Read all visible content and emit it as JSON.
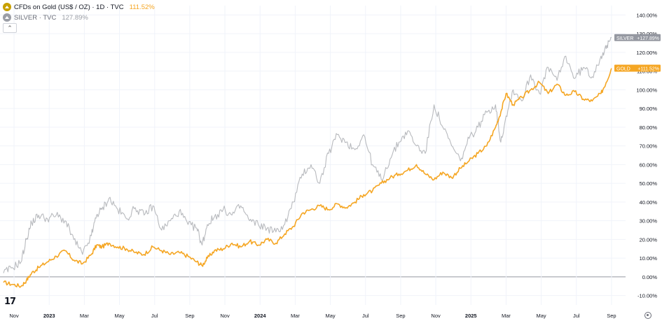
{
  "legend": {
    "gold": {
      "label": "CFDs on Gold (US$ / OZ) · 1D · TVC",
      "value": "111.52%"
    },
    "silver": {
      "label": "SILVER · TVC",
      "value": "127.89%"
    }
  },
  "collapse_icon": "chevron-up-icon",
  "logo_text": "17",
  "colors": {
    "gold": "#f5a623",
    "silver": "#b8babe",
    "silver_tag": "#9598a1",
    "grid": "#f0f3fa",
    "zero": "#9598a1",
    "text": "#131722"
  },
  "chart_data": {
    "type": "line",
    "y_unit": "%",
    "ylim": [
      -15,
      145
    ],
    "y_ticks": [
      "140.00%",
      "130.00%",
      "120.00%",
      "110.00%",
      "100.00%",
      "90.00%",
      "80.00%",
      "70.00%",
      "60.00%",
      "50.00%",
      "40.00%",
      "30.00%",
      "20.00%",
      "10.00%",
      "0.00%",
      "-10.00%"
    ],
    "x_ticks": [
      {
        "label": "Nov",
        "t": 0.6
      },
      {
        "label": "2023",
        "t": 2.6
      },
      {
        "label": "Mar",
        "t": 4.6
      },
      {
        "label": "May",
        "t": 6.6
      },
      {
        "label": "Jul",
        "t": 8.6
      },
      {
        "label": "Sep",
        "t": 10.6
      },
      {
        "label": "Nov",
        "t": 12.6
      },
      {
        "label": "2024",
        "t": 14.6
      },
      {
        "label": "Mar",
        "t": 16.6
      },
      {
        "label": "May",
        "t": 18.6
      },
      {
        "label": "Jul",
        "t": 20.6
      },
      {
        "label": "Sep",
        "t": 22.6
      },
      {
        "label": "Nov",
        "t": 24.6
      },
      {
        "label": "2025",
        "t": 26.6
      },
      {
        "label": "Mar",
        "t": 28.6
      },
      {
        "label": "May",
        "t": 30.6
      },
      {
        "label": "Jul",
        "t": 32.6
      },
      {
        "label": "Sep",
        "t": 34.6
      }
    ],
    "x_unit": "months since chart start (Oct 2022)",
    "grid": true,
    "legend": "top-left",
    "series": [
      {
        "name": "GOLD",
        "tag": "+111.52%",
        "last_value": 111.52,
        "x": [
          0,
          0.5,
          1,
          1.3,
          1.6,
          2,
          2.5,
          3,
          3.5,
          4,
          4.5,
          5,
          5.3,
          5.6,
          6,
          6.5,
          7,
          7.5,
          8,
          8.5,
          9,
          9.5,
          10,
          10.5,
          11,
          11.3,
          11.6,
          12,
          12.5,
          13,
          13.5,
          14,
          14.5,
          15,
          15.5,
          16,
          16.5,
          17,
          17.5,
          18,
          18.5,
          19,
          19.5,
          20,
          20.5,
          21,
          21.5,
          22,
          22.5,
          23,
          23.5,
          24,
          24.5,
          25,
          25.5,
          26,
          26.5,
          27,
          27.5,
          28,
          28.3,
          28.6,
          29,
          29.5,
          30,
          30.5,
          31,
          31.5,
          32,
          32.5,
          33,
          33.5,
          34,
          34.3,
          34.6
        ],
        "values": [
          -3,
          -4,
          -5,
          -2,
          2,
          5,
          8,
          11,
          14,
          9,
          7,
          12,
          17,
          16,
          18,
          16,
          15,
          13,
          12,
          16,
          14,
          12,
          13,
          11,
          8,
          6,
          10,
          14,
          15,
          18,
          16,
          19,
          17,
          20,
          18,
          23,
          27,
          34,
          36,
          38,
          36,
          39,
          37,
          40,
          44,
          46,
          50,
          53,
          55,
          57,
          60,
          55,
          52,
          56,
          53,
          58,
          62,
          66,
          70,
          80,
          88,
          98,
          92,
          96,
          100,
          104,
          98,
          103,
          97,
          99,
          95,
          94,
          98,
          104,
          111.52
        ]
      },
      {
        "name": "SILVER",
        "tag": "+127.89%",
        "last_value": 127.89,
        "x": [
          0,
          0.5,
          1,
          1.3,
          1.6,
          2,
          2.5,
          3,
          3.5,
          4,
          4.5,
          5,
          5.3,
          5.6,
          6,
          6.5,
          7,
          7.5,
          8,
          8.5,
          9,
          9.5,
          10,
          10.5,
          11,
          11.3,
          11.6,
          12,
          12.5,
          13,
          13.5,
          14,
          14.5,
          15,
          15.5,
          16,
          16.5,
          17,
          17.5,
          18,
          18.5,
          19,
          19.5,
          20,
          20.5,
          21,
          21.5,
          22,
          22.5,
          23,
          23.5,
          24,
          24.5,
          25,
          25.5,
          26,
          26.5,
          27,
          27.5,
          28,
          28.3,
          28.6,
          29,
          29.5,
          30,
          30.5,
          31,
          31.5,
          32,
          32.5,
          33,
          33.5,
          34,
          34.3,
          34.6
        ],
        "values": [
          2,
          5,
          8,
          20,
          29,
          33,
          31,
          33,
          30,
          20,
          12,
          22,
          33,
          36,
          42,
          36,
          31,
          37,
          33,
          38,
          25,
          30,
          35,
          28,
          26,
          17,
          28,
          32,
          36,
          33,
          38,
          30,
          28,
          26,
          24,
          28,
          40,
          55,
          60,
          50,
          66,
          76,
          72,
          68,
          76,
          60,
          52,
          63,
          72,
          78,
          70,
          66,
          92,
          80,
          70,
          62,
          74,
          80,
          88,
          92,
          72,
          86,
          100,
          94,
          108,
          98,
          112,
          105,
          118,
          106,
          112,
          107,
          118,
          122,
          127.89
        ]
      }
    ]
  }
}
